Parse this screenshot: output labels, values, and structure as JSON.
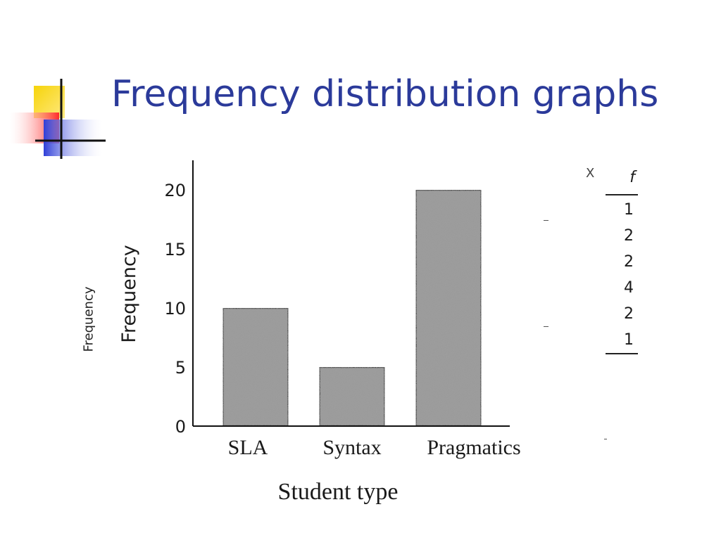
{
  "slide": {
    "title": "Frequency distribution graphs",
    "side_label": "Frequency"
  },
  "colors": {
    "title": "#2b3a9a",
    "logo_yellow": "#f6d40a",
    "logo_red": "#ff3c3c",
    "logo_blue": "#2f3fd8",
    "bar_fill": "#9a9a9a",
    "ink": "#1a1a1a"
  },
  "chart_data": {
    "type": "bar",
    "categories": [
      "SLA",
      "Syntax",
      "Pragmatics"
    ],
    "values": [
      10,
      5,
      20
    ],
    "title": "",
    "xlabel": "Student type",
    "ylabel": "Frequency",
    "ylim": [
      0,
      20
    ],
    "yticks": [
      0,
      5,
      10,
      15,
      20
    ],
    "grid": false
  },
  "freq_table": {
    "header_x": "X",
    "header_f": "f",
    "f_values": [
      "1",
      "2",
      "2",
      "4",
      "2",
      "1"
    ]
  }
}
